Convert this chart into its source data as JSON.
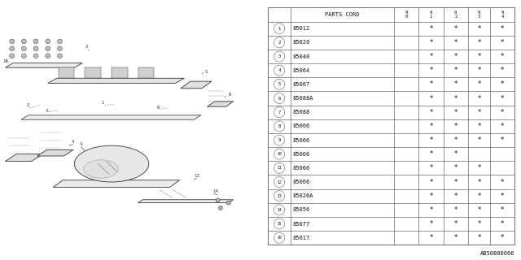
{
  "rows": [
    {
      "num": 1,
      "code": "85012",
      "cols": [
        false,
        true,
        true,
        true,
        true
      ]
    },
    {
      "num": 2,
      "code": "85020",
      "cols": [
        false,
        true,
        true,
        true,
        true
      ]
    },
    {
      "num": 3,
      "code": "85040",
      "cols": [
        false,
        true,
        true,
        true,
        true
      ]
    },
    {
      "num": 4,
      "code": "85064",
      "cols": [
        false,
        true,
        true,
        true,
        true
      ]
    },
    {
      "num": 5,
      "code": "85067",
      "cols": [
        false,
        true,
        true,
        true,
        true
      ]
    },
    {
      "num": 6,
      "code": "85088A",
      "cols": [
        false,
        true,
        true,
        true,
        true
      ]
    },
    {
      "num": 7,
      "code": "85088",
      "cols": [
        false,
        true,
        true,
        true,
        true
      ]
    },
    {
      "num": 8,
      "code": "85066",
      "cols": [
        false,
        true,
        true,
        true,
        true
      ]
    },
    {
      "num": 9,
      "code": "85066",
      "cols": [
        false,
        true,
        true,
        true,
        true
      ]
    },
    {
      "num": 10,
      "code": "85066",
      "cols": [
        false,
        true,
        true,
        false,
        false
      ]
    },
    {
      "num": 11,
      "code": "85066",
      "cols": [
        false,
        true,
        true,
        true,
        false
      ]
    },
    {
      "num": 12,
      "code": "85066",
      "cols": [
        false,
        true,
        true,
        true,
        true
      ]
    },
    {
      "num": 13,
      "code": "85026A",
      "cols": [
        false,
        true,
        true,
        true,
        true
      ]
    },
    {
      "num": 14,
      "code": "85056",
      "cols": [
        false,
        true,
        true,
        true,
        true
      ]
    },
    {
      "num": 15,
      "code": "85077",
      "cols": [
        false,
        true,
        true,
        true,
        true
      ]
    },
    {
      "num": 16,
      "code": "85017",
      "cols": [
        false,
        true,
        true,
        true,
        true
      ]
    }
  ],
  "bg_color": "#ffffff",
  "border_color": "#666666",
  "text_color": "#111111",
  "footnote": "AB50B00066",
  "year_labels": [
    "9\n0",
    "9\n1",
    "9\n2",
    "9\n3",
    "9\n4"
  ]
}
